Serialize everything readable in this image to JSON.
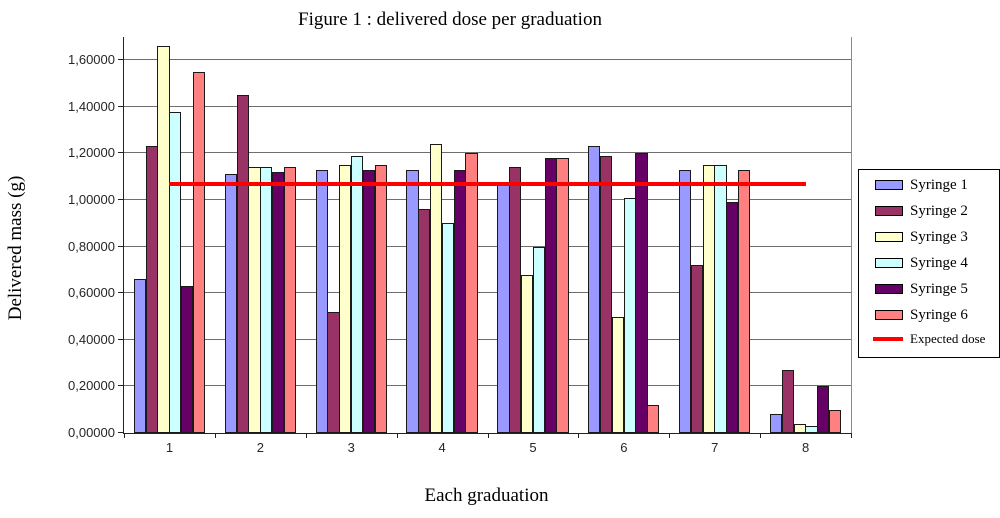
{
  "title": "Figure 1 : delivered dose per graduation",
  "y_axis": {
    "label": "Delivered mass (g)",
    "tick_labels": [
      "0,00000",
      "0,20000",
      "0,40000",
      "0,60000",
      "0,80000",
      "1,00000",
      "1,20000",
      "1,40000",
      "1,60000"
    ]
  },
  "x_axis": {
    "label": "Each graduation",
    "categories": [
      "1",
      "2",
      "3",
      "4",
      "5",
      "6",
      "7",
      "8"
    ]
  },
  "legend": {
    "entries": [
      {
        "label": "Syringe 1",
        "color": "#9999FF",
        "type": "bar"
      },
      {
        "label": "Syringe 2",
        "color": "#993366",
        "type": "bar"
      },
      {
        "label": "Syringe 3",
        "color": "#FFFFCC",
        "type": "bar"
      },
      {
        "label": "Syringe 4",
        "color": "#CCFFFF",
        "type": "bar"
      },
      {
        "label": "Syringe 5",
        "color": "#660066",
        "type": "bar"
      },
      {
        "label": "Syringe 6",
        "color": "#FF8080",
        "type": "bar"
      },
      {
        "label": "Expected dose",
        "color": "#FF0000",
        "type": "line"
      }
    ]
  },
  "chart_data": {
    "type": "bar",
    "title": "Figure 1 : delivered dose per graduation",
    "xlabel": "Each graduation",
    "ylabel": "Delivered mass (g)",
    "categories": [
      "1",
      "2",
      "3",
      "4",
      "5",
      "6",
      "7",
      "8"
    ],
    "series": [
      {
        "name": "Syringe 1",
        "color": "#9999FF",
        "values": [
          0.66,
          1.11,
          1.13,
          1.13,
          1.07,
          1.23,
          1.13,
          0.08
        ]
      },
      {
        "name": "Syringe 2",
        "color": "#993366",
        "values": [
          1.23,
          1.45,
          0.52,
          0.96,
          1.14,
          1.19,
          0.72,
          0.27
        ]
      },
      {
        "name": "Syringe 3",
        "color": "#FFFFCC",
        "values": [
          1.66,
          1.14,
          1.15,
          1.24,
          0.68,
          0.5,
          1.15,
          0.04
        ]
      },
      {
        "name": "Syringe 4",
        "color": "#CCFFFF",
        "values": [
          1.38,
          1.14,
          1.19,
          0.9,
          0.8,
          1.01,
          1.15,
          0.03
        ]
      },
      {
        "name": "Syringe 5",
        "color": "#660066",
        "values": [
          0.63,
          1.12,
          1.13,
          1.13,
          1.18,
          1.2,
          0.99,
          0.2
        ]
      },
      {
        "name": "Syringe 6",
        "color": "#FF8080",
        "values": [
          1.55,
          1.14,
          1.15,
          1.2,
          1.18,
          0.12,
          1.13,
          0.1
        ]
      }
    ],
    "expected_dose": {
      "name": "Expected dose",
      "color": "#FF0000",
      "value": 1.07,
      "spans_categories": [
        "1",
        "8"
      ]
    },
    "ylim": [
      0,
      1.7
    ],
    "ytick_step": 0.2,
    "decimal_separator": ",",
    "grid": true,
    "legend_position": "right"
  }
}
